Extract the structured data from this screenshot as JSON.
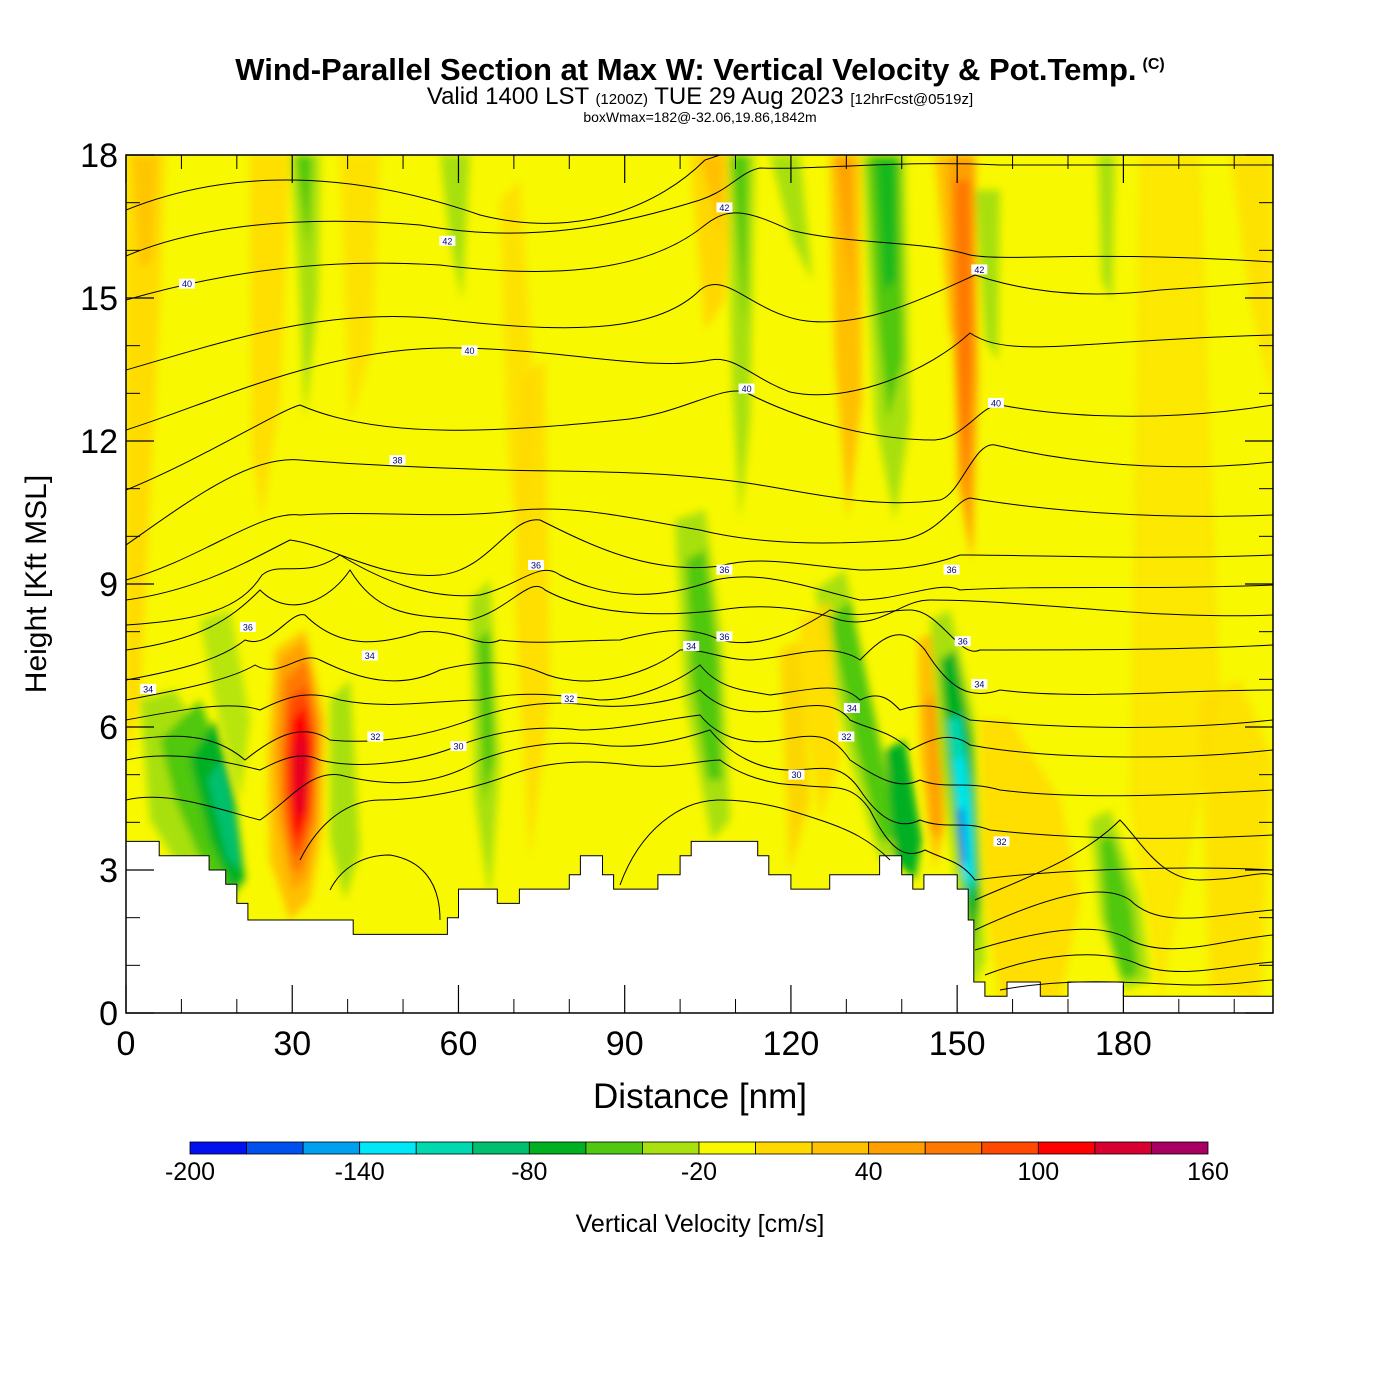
{
  "header": {
    "title": "Wind-Parallel Section at Max W: Vertical Velocity & Pot.Temp.",
    "copyright": "(C)",
    "valid_prefix": "Valid 1400 LST",
    "valid_utc": "(1200Z)",
    "valid_date": "TUE 29 Aug 2023",
    "forecast": "[12hrFcst@0519z]",
    "box_wmax": "boxWmax=182@-32.06,19.86,1842m"
  },
  "chart_data": {
    "type": "heatmap",
    "xlabel": "Distance [nm]",
    "ylabel": "Height [Kft MSL]",
    "xlim": [
      0,
      207
    ],
    "ylim": [
      0,
      18
    ],
    "x_ticks": [
      "0",
      "30",
      "60",
      "90",
      "120",
      "150",
      "180"
    ],
    "y_ticks": [
      "0",
      "3",
      "6",
      "9",
      "12",
      "15",
      "18"
    ],
    "colorbar": {
      "label": "Vertical Velocity [cm/s]",
      "tick_labels": [
        "-200",
        "-140",
        "-80",
        "-20",
        "40",
        "100",
        "160"
      ],
      "levels": [
        -200,
        -180,
        -160,
        -140,
        -120,
        -100,
        -80,
        -60,
        -40,
        -20,
        0,
        20,
        40,
        60,
        80,
        100,
        120,
        140,
        160
      ],
      "colors": [
        "#0010ee",
        "#0050ee",
        "#00a0f0",
        "#00e8f8",
        "#00d8b0",
        "#00c070",
        "#00b020",
        "#50c810",
        "#a8e010",
        "#f8f800",
        "#ffd800",
        "#ffc000",
        "#ffa000",
        "#ff7800",
        "#ff4800",
        "#ff0000",
        "#d80030",
        "#a80060"
      ]
    },
    "terrain_kft": [
      [
        0,
        3.6
      ],
      [
        6,
        3.6
      ],
      [
        6,
        3.3
      ],
      [
        15,
        3.3
      ],
      [
        15,
        3.0
      ],
      [
        18,
        3.0
      ],
      [
        18,
        2.7
      ],
      [
        20,
        2.7
      ],
      [
        20,
        2.3
      ],
      [
        22,
        2.3
      ],
      [
        22,
        1.95
      ],
      [
        41,
        1.95
      ],
      [
        41,
        1.65
      ],
      [
        58,
        1.65
      ],
      [
        58,
        2.0
      ],
      [
        60,
        2.0
      ],
      [
        60,
        2.6
      ],
      [
        67,
        2.6
      ],
      [
        67,
        2.3
      ],
      [
        71,
        2.3
      ],
      [
        71,
        2.6
      ],
      [
        80,
        2.6
      ],
      [
        80,
        2.9
      ],
      [
        82,
        2.9
      ],
      [
        82,
        3.3
      ],
      [
        86,
        3.3
      ],
      [
        86,
        2.9
      ],
      [
        88,
        2.9
      ],
      [
        88,
        2.6
      ],
      [
        96,
        2.6
      ],
      [
        96,
        2.9
      ],
      [
        100,
        2.9
      ],
      [
        100,
        3.3
      ],
      [
        102,
        3.3
      ],
      [
        102,
        3.6
      ],
      [
        114,
        3.6
      ],
      [
        114,
        3.3
      ],
      [
        116,
        3.3
      ],
      [
        116,
        2.9
      ],
      [
        120,
        2.9
      ],
      [
        120,
        2.6
      ],
      [
        127,
        2.6
      ],
      [
        127,
        2.9
      ],
      [
        136,
        2.9
      ],
      [
        136,
        3.3
      ],
      [
        140,
        3.3
      ],
      [
        140,
        2.9
      ],
      [
        142,
        2.9
      ],
      [
        142,
        2.6
      ],
      [
        144,
        2.6
      ],
      [
        144,
        2.9
      ],
      [
        150,
        2.9
      ],
      [
        150,
        2.6
      ],
      [
        152,
        2.6
      ],
      [
        152,
        1.95
      ],
      [
        153,
        1.95
      ],
      [
        153,
        0.65
      ],
      [
        155,
        0.65
      ],
      [
        155,
        0.35
      ],
      [
        159,
        0.35
      ],
      [
        159,
        0.65
      ],
      [
        165,
        0.65
      ],
      [
        165,
        0.35
      ],
      [
        170,
        0.35
      ],
      [
        170,
        0.65
      ],
      [
        180,
        0.65
      ],
      [
        180,
        0.35
      ],
      [
        207,
        0.35
      ]
    ],
    "isentrope_labels": [
      {
        "text": "42",
        "x": 58,
        "y": 16.2
      },
      {
        "text": "42",
        "x": 108,
        "y": 16.9
      },
      {
        "text": "42",
        "x": 154,
        "y": 15.6
      },
      {
        "text": "40",
        "x": 11,
        "y": 15.3
      },
      {
        "text": "40",
        "x": 62,
        "y": 13.9
      },
      {
        "text": "40",
        "x": 112,
        "y": 13.1
      },
      {
        "text": "40",
        "x": 157,
        "y": 12.8
      },
      {
        "text": "38",
        "x": 49,
        "y": 11.6
      },
      {
        "text": "36",
        "x": 74,
        "y": 9.4
      },
      {
        "text": "36",
        "x": 108,
        "y": 9.3
      },
      {
        "text": "36",
        "x": 149,
        "y": 9.3
      },
      {
        "text": "36",
        "x": 22,
        "y": 8.1
      },
      {
        "text": "36",
        "x": 108,
        "y": 7.9
      },
      {
        "text": "36",
        "x": 151,
        "y": 7.8
      },
      {
        "text": "34",
        "x": 44,
        "y": 7.5
      },
      {
        "text": "34",
        "x": 102,
        "y": 7.7
      },
      {
        "text": "34",
        "x": 4,
        "y": 6.8
      },
      {
        "text": "34",
        "x": 154,
        "y": 6.9
      },
      {
        "text": "32",
        "x": 80,
        "y": 6.6
      },
      {
        "text": "34",
        "x": 131,
        "y": 6.4
      },
      {
        "text": "32",
        "x": 45,
        "y": 5.8
      },
      {
        "text": "32",
        "x": 130,
        "y": 5.8
      },
      {
        "text": "30",
        "x": 60,
        "y": 5.6
      },
      {
        "text": "30",
        "x": 121,
        "y": 5.0
      },
      {
        "text": "32",
        "x": 158,
        "y": 3.6
      }
    ]
  }
}
